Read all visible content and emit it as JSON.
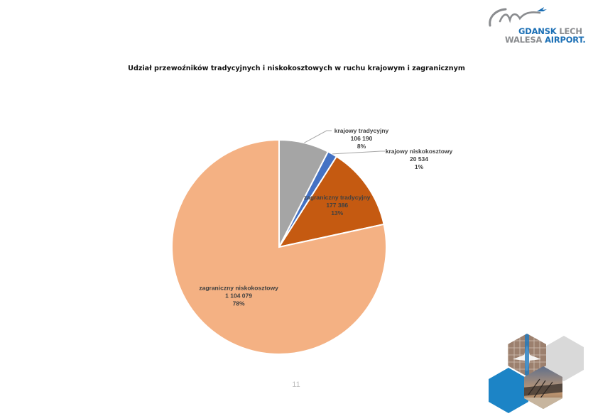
{
  "logo": {
    "line1_word1": "GDANSK",
    "line1_word2": "LECH",
    "line2_word1": "WALESA",
    "line2_word2": "AIRPORT."
  },
  "chart_data": {
    "type": "pie",
    "title": "Udział przewoźników tradycyjnych i niskokosztowych w ruchu krajowym i zagranicznym",
    "start_angle_deg": 0,
    "direction": "clockwise",
    "slices": [
      {
        "label": "krajowy tradycyjny",
        "value": 106190,
        "value_text": "106 190",
        "percent_text": "8%",
        "color": "#a5a5a5",
        "label_placement": "outside-top"
      },
      {
        "label": "krajowy niskokosztowy",
        "value": 20534,
        "value_text": "20 534",
        "percent_text": "1%",
        "color": "#4472c4",
        "label_placement": "outside-right"
      },
      {
        "label": "zagraniczny tradycyjny",
        "value": 177386,
        "value_text": "177 386",
        "percent_text": "13%",
        "color": "#c55a11",
        "label_placement": "inside"
      },
      {
        "label": "zagraniczny niskokosztowy",
        "value": 1104079,
        "value_text": "1 104 079",
        "percent_text": "78%",
        "color": "#f4b183",
        "label_placement": "inside"
      }
    ],
    "label_text_color": "#404040",
    "leader_line_color": "#a6a6a6"
  },
  "page": {
    "number": "11"
  }
}
